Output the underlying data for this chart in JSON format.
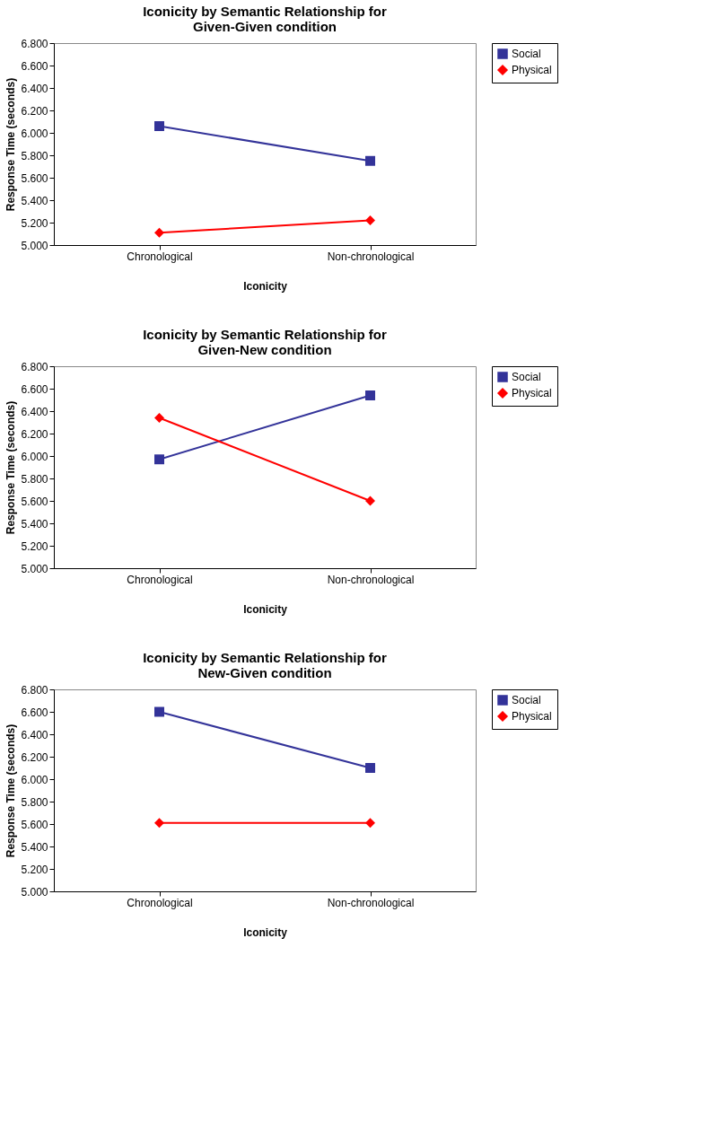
{
  "chart_data": [
    {
      "type": "line",
      "title": "Iconicity by Semantic Relationship for Given-Given condition",
      "xlabel": "Iconicity",
      "ylabel": "Response Time (seconds)",
      "categories": [
        "Chronological",
        "Non-chronological"
      ],
      "series": [
        {
          "name": "Social",
          "color": "#333399",
          "marker": "square",
          "values": [
            6.06,
            5.75
          ]
        },
        {
          "name": "Physical",
          "color": "#ff0000",
          "marker": "diamond",
          "values": [
            5.11,
            5.22
          ]
        }
      ],
      "ylim": [
        5.0,
        6.8
      ],
      "yticks": [
        {
          "value": 5.0,
          "label": "5.000"
        },
        {
          "value": 5.2,
          "label": "5.200"
        },
        {
          "value": 5.4,
          "label": "5.400"
        },
        {
          "value": 5.6,
          "label": "5.600"
        },
        {
          "value": 5.8,
          "label": "5.800"
        },
        {
          "value": 6.0,
          "label": "6.000"
        },
        {
          "value": 6.2,
          "label": "6.200"
        },
        {
          "value": 6.4,
          "label": "6.400"
        },
        {
          "value": 6.6,
          "label": "6.600"
        },
        {
          "value": 6.8,
          "label": "6.800"
        }
      ],
      "grid": false,
      "legend": "right",
      "line_style": "solid"
    },
    {
      "type": "line",
      "title": "Iconicity by Semantic Relationship for Given-New condition",
      "xlabel": "Iconicity",
      "ylabel": "Response Time (seconds)",
      "categories": [
        "Chronological",
        "Non-chronological"
      ],
      "series": [
        {
          "name": "Social",
          "color": "#333399",
          "marker": "square",
          "values": [
            5.97,
            6.54
          ]
        },
        {
          "name": "Physical",
          "color": "#ff0000",
          "marker": "diamond",
          "values": [
            6.34,
            5.6
          ]
        }
      ],
      "ylim": [
        5.0,
        6.8
      ],
      "yticks": [
        {
          "value": 5.0,
          "label": "5.000"
        },
        {
          "value": 5.2,
          "label": "5.200"
        },
        {
          "value": 5.4,
          "label": "5.400"
        },
        {
          "value": 5.6,
          "label": "5.600"
        },
        {
          "value": 5.8,
          "label": "5.800"
        },
        {
          "value": 6.0,
          "label": "6.000"
        },
        {
          "value": 6.2,
          "label": "6.200"
        },
        {
          "value": 6.4,
          "label": "6.400"
        },
        {
          "value": 6.6,
          "label": "6.600"
        },
        {
          "value": 6.8,
          "label": "6.800"
        }
      ],
      "grid": false,
      "legend": "right",
      "line_style": "solid"
    },
    {
      "type": "line",
      "title": "Iconicity by Semantic Relationship for New-Given condition",
      "xlabel": "Iconicity",
      "ylabel": "Response Time (seconds)",
      "categories": [
        "Chronological",
        "Non-chronological"
      ],
      "series": [
        {
          "name": "Social",
          "color": "#333399",
          "marker": "square",
          "values": [
            6.6,
            6.1
          ]
        },
        {
          "name": "Physical",
          "color": "#ff0000",
          "marker": "diamond",
          "values": [
            5.61,
            5.61
          ]
        }
      ],
      "ylim": [
        5.0,
        6.8
      ],
      "yticks": [
        {
          "value": 5.0,
          "label": "5.000"
        },
        {
          "value": 5.2,
          "label": "5.200"
        },
        {
          "value": 5.4,
          "label": "5.400"
        },
        {
          "value": 5.6,
          "label": "5.600"
        },
        {
          "value": 5.8,
          "label": "5.800"
        },
        {
          "value": 6.0,
          "label": "6.000"
        },
        {
          "value": 6.2,
          "label": "6.200"
        },
        {
          "value": 6.4,
          "label": "6.400"
        },
        {
          "value": 6.6,
          "label": "6.600"
        },
        {
          "value": 6.8,
          "label": "6.800"
        }
      ],
      "grid": false,
      "legend": "right",
      "line_style": "solid"
    }
  ]
}
